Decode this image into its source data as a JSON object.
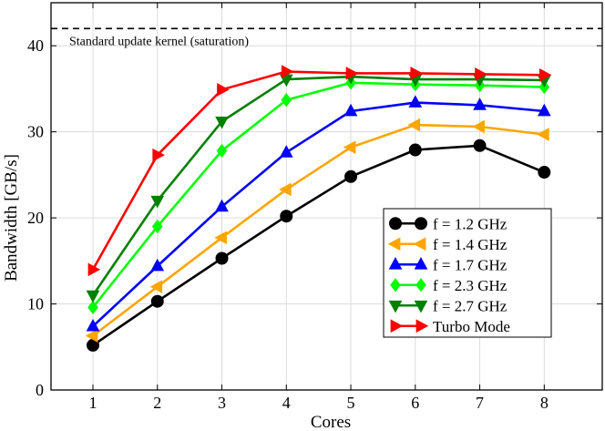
{
  "chart_data": {
    "type": "line",
    "xlabel": "Cores",
    "ylabel": "Bandwidth [GB/s]",
    "x": [
      1,
      2,
      3,
      4,
      5,
      6,
      7,
      8
    ],
    "xlim": [
      0.35,
      8.9
    ],
    "ylim": [
      0,
      45
    ],
    "xticks": [
      1,
      2,
      3,
      4,
      5,
      6,
      7,
      8
    ],
    "yticks": [
      0,
      10,
      20,
      30,
      40
    ],
    "grid": true,
    "legend_position": "lower-right",
    "reference_line": {
      "y": 42,
      "style": "dashed",
      "color": "#000000",
      "label": "Standard update kernel (saturation)"
    },
    "series": [
      {
        "name": "f = 1.2 GHz",
        "color": "#000000",
        "marker": "circle",
        "values": [
          5.2,
          10.3,
          15.3,
          20.2,
          24.8,
          27.9,
          28.4,
          25.3
        ]
      },
      {
        "name": "f = 1.4 GHz",
        "color": "#ffa500",
        "marker": "triangle-left",
        "values": [
          6.3,
          12.0,
          17.7,
          23.3,
          28.2,
          30.8,
          30.6,
          29.7
        ]
      },
      {
        "name": "f = 1.7 GHz",
        "color": "#0000ff",
        "marker": "triangle-up",
        "values": [
          7.4,
          14.4,
          21.3,
          27.6,
          32.4,
          33.4,
          33.1,
          32.4
        ]
      },
      {
        "name": "f = 2.3 GHz",
        "color": "#00ff00",
        "marker": "diamond",
        "values": [
          9.6,
          19.0,
          27.8,
          33.7,
          35.7,
          35.5,
          35.4,
          35.2
        ]
      },
      {
        "name": "f = 2.7 GHz",
        "color": "#008000",
        "marker": "triangle-down",
        "values": [
          11.0,
          22.0,
          31.2,
          36.1,
          36.4,
          36.1,
          36.1,
          36.0
        ]
      },
      {
        "name": "Turbo Mode",
        "color": "#ff0000",
        "marker": "triangle-right",
        "values": [
          14.0,
          27.3,
          34.9,
          37.0,
          36.8,
          36.8,
          36.7,
          36.6
        ]
      }
    ]
  }
}
